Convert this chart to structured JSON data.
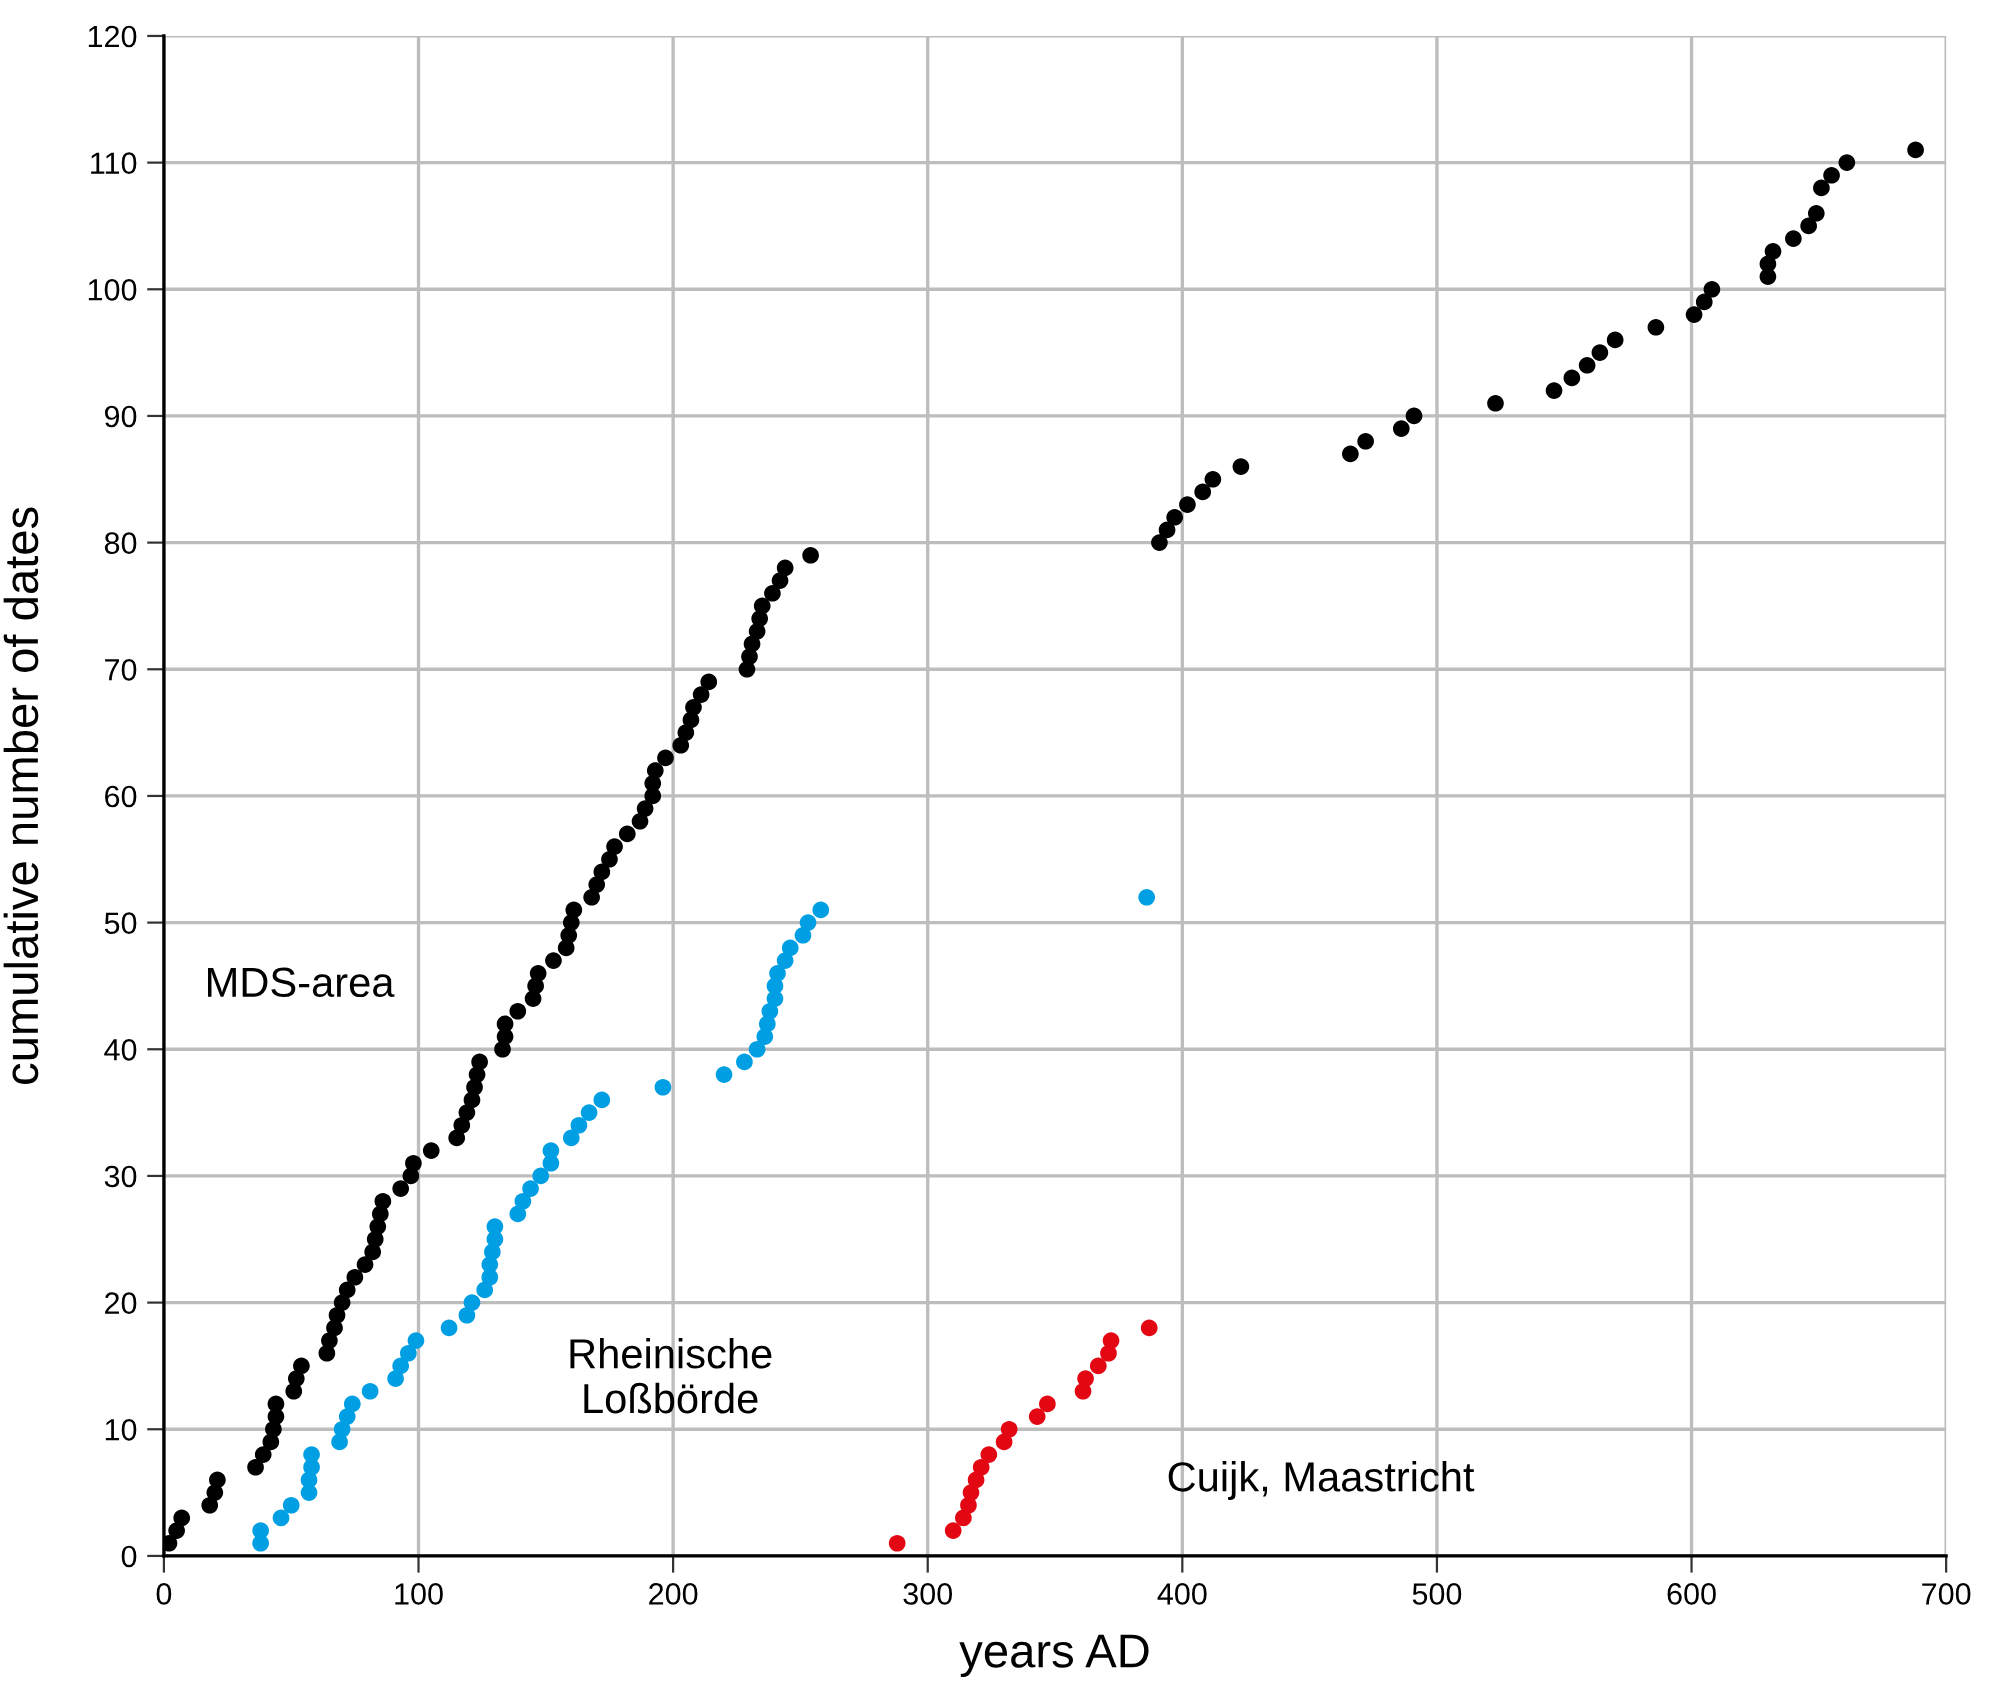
{
  "chart_data": {
    "type": "scatter",
    "xlabel": "years AD",
    "ylabel": "cumulative number of dates",
    "xlim": [
      0,
      700
    ],
    "xticks": [
      0,
      100,
      200,
      300,
      400,
      500,
      600,
      700
    ],
    "ylim": [
      0,
      120
    ],
    "yticks": [
      0,
      10,
      20,
      30,
      40,
      50,
      60,
      70,
      80,
      90,
      100,
      110,
      120
    ],
    "grid": true,
    "marker": "circle",
    "series": [
      {
        "name": "MDS-area",
        "color": "#000000",
        "x": [
          2,
          5,
          7,
          18,
          20,
          21,
          36,
          39,
          42,
          43,
          44,
          44,
          51,
          52,
          54,
          64,
          65,
          67,
          68,
          70,
          72,
          75,
          79,
          82,
          83,
          84,
          85,
          86,
          93,
          97,
          98,
          105,
          115,
          117,
          119,
          121,
          122,
          123,
          124,
          133,
          134,
          134,
          139,
          145,
          146,
          147,
          153,
          158,
          159,
          160,
          161,
          168,
          170,
          172,
          175,
          177,
          182,
          187,
          189,
          192,
          192,
          193,
          197,
          203,
          205,
          207,
          208,
          211,
          214,
          229,
          230,
          231,
          233,
          234,
          235,
          239,
          242,
          244,
          254,
          391,
          394,
          397,
          402,
          408,
          412,
          423,
          466,
          472,
          486,
          491,
          523,
          546,
          553,
          559,
          564,
          570,
          586,
          601,
          605,
          608,
          630,
          630,
          632,
          640,
          646,
          649,
          651,
          655,
          661,
          688
        ],
        "values": [
          1,
          2,
          3,
          4,
          5,
          6,
          7,
          8,
          9,
          10,
          11,
          12,
          13,
          14,
          15,
          16,
          17,
          18,
          19,
          20,
          21,
          22,
          23,
          24,
          25,
          26,
          27,
          28,
          29,
          30,
          31,
          32,
          33,
          34,
          35,
          36,
          37,
          38,
          39,
          40,
          41,
          42,
          43,
          44,
          45,
          46,
          47,
          48,
          49,
          50,
          51,
          52,
          53,
          54,
          55,
          56,
          57,
          58,
          59,
          60,
          61,
          62,
          63,
          64,
          65,
          66,
          67,
          68,
          69,
          70,
          71,
          72,
          73,
          74,
          75,
          76,
          77,
          78,
          79,
          80,
          81,
          82,
          83,
          84,
          85,
          86,
          87,
          88,
          89,
          90,
          91,
          92,
          93,
          94,
          95,
          96,
          97,
          98,
          99,
          100,
          101,
          102,
          103,
          104,
          105,
          106,
          108,
          109,
          110,
          111
        ]
      },
      {
        "name": "Rheinische\nLoßbörde",
        "color": "#009fe3",
        "x": [
          38,
          38,
          46,
          50,
          57,
          57,
          58,
          58,
          69,
          70,
          72,
          74,
          81,
          91,
          93,
          96,
          99,
          112,
          119,
          121,
          126,
          128,
          128,
          129,
          130,
          130,
          139,
          141,
          144,
          148,
          152,
          152,
          160,
          163,
          167,
          172,
          196,
          220,
          228,
          233,
          236,
          237,
          238,
          240,
          240,
          241,
          244,
          246,
          251,
          253,
          258,
          386
        ],
        "values": [
          1,
          2,
          3,
          4,
          5,
          6,
          7,
          8,
          9,
          10,
          11,
          12,
          13,
          14,
          15,
          16,
          17,
          18,
          19,
          20,
          21,
          22,
          23,
          24,
          25,
          26,
          27,
          28,
          29,
          30,
          31,
          32,
          33,
          34,
          35,
          36,
          37,
          38,
          39,
          40,
          41,
          42,
          43,
          44,
          45,
          46,
          47,
          48,
          49,
          50,
          51,
          52
        ]
      },
      {
        "name": "Cuijk, Maastricht",
        "color": "#e30613",
        "x": [
          288,
          310,
          314,
          316,
          317,
          319,
          321,
          324,
          330,
          332,
          343,
          347,
          361,
          362,
          367,
          371,
          372,
          387
        ],
        "values": [
          1,
          2,
          3,
          4,
          5,
          6,
          7,
          8,
          9,
          10,
          11,
          12,
          13,
          14,
          15,
          16,
          17,
          18
        ]
      }
    ]
  }
}
